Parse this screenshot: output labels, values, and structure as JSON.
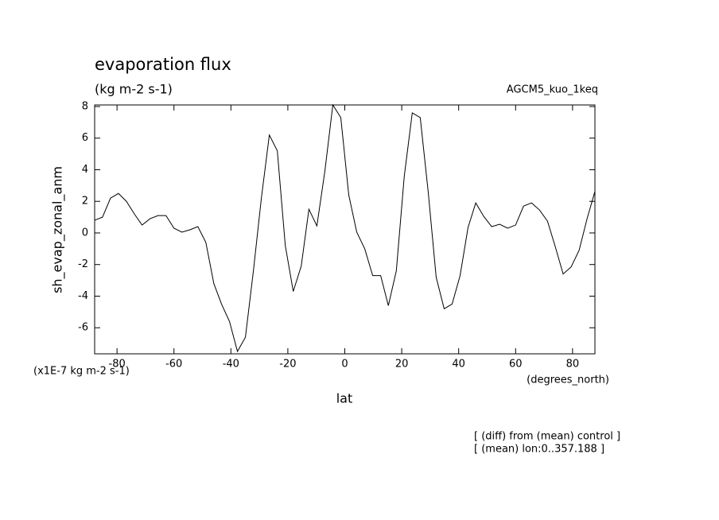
{
  "chart_data": {
    "type": "line",
    "title": "evaporation flux",
    "subtitle": "(kg m-2 s-1)",
    "dataset_label": "AGCM5_kuo_1keq",
    "xlabel": "lat",
    "xunits": "(degrees_north)",
    "ylabel": "sh_evap_zonal_anm",
    "yunits": "(x1E-7 kg m-2 s-1)",
    "notes": [
      "[ (diff) from (mean) control ]",
      "[ (mean) lon:0..357.188 ]"
    ],
    "x": [
      -87.9,
      -85.1,
      -82.3,
      -79.5,
      -76.7,
      -73.9,
      -71.2,
      -68.4,
      -65.6,
      -62.8,
      -60.0,
      -57.2,
      -54.4,
      -51.6,
      -48.8,
      -46.0,
      -43.3,
      -40.5,
      -37.7,
      -34.9,
      -32.1,
      -29.3,
      -26.5,
      -23.7,
      -20.9,
      -18.1,
      -15.3,
      -12.6,
      -9.8,
      -7.0,
      -4.2,
      -1.4,
      1.4,
      4.2,
      7.0,
      9.8,
      12.6,
      15.3,
      18.1,
      20.9,
      23.7,
      26.5,
      29.3,
      32.1,
      34.9,
      37.7,
      40.5,
      43.3,
      46.0,
      48.8,
      51.6,
      54.4,
      57.2,
      60.0,
      62.8,
      65.6,
      68.4,
      71.2,
      73.9,
      76.7,
      79.5,
      82.3,
      85.1,
      87.9
    ],
    "series": [
      {
        "name": "sh_evap_zonal_anm",
        "color": "#000000",
        "values": [
          0.8,
          1.0,
          2.2,
          2.5,
          2.0,
          1.2,
          0.5,
          0.9,
          1.1,
          1.1,
          0.3,
          0.05,
          0.2,
          0.4,
          -0.6,
          -3.2,
          -4.5,
          -5.6,
          -7.5,
          -6.6,
          -2.4,
          2.2,
          6.2,
          5.2,
          -0.8,
          -3.7,
          -2.1,
          1.5,
          0.45,
          3.9,
          8.1,
          7.3,
          2.4,
          0.05,
          -1.0,
          -2.7,
          -2.7,
          -4.6,
          -2.4,
          3.6,
          7.6,
          7.3,
          2.6,
          -2.8,
          -4.8,
          -4.5,
          -2.7,
          0.35,
          1.9,
          1.05,
          0.4,
          0.55,
          0.3,
          0.5,
          1.7,
          1.9,
          1.45,
          0.75,
          -0.85,
          -2.6,
          -2.15,
          -1.1,
          0.9,
          2.65
        ]
      }
    ],
    "xlim": [
      -87.86,
      87.86
    ],
    "ylim": [
      -7.65,
      8.1
    ],
    "xticks": [
      -80,
      -60,
      -40,
      -20,
      0,
      20,
      40,
      60,
      80
    ],
    "yticks": [
      -6,
      -4,
      -2,
      0,
      2,
      4,
      6,
      8
    ]
  }
}
